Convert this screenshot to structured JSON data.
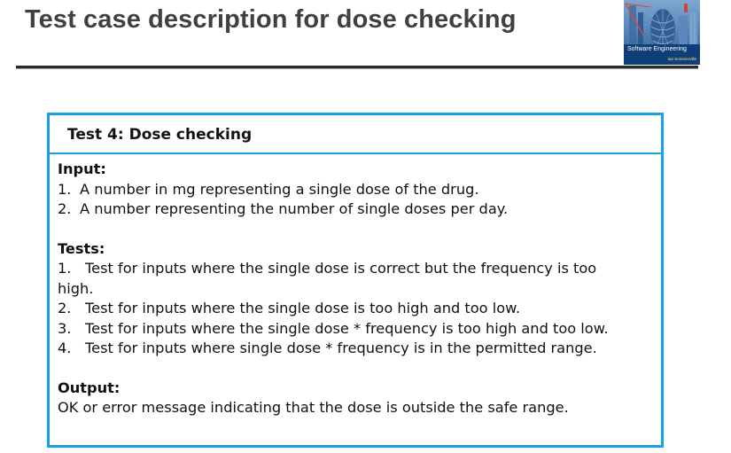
{
  "slide": {
    "title": "Test case description for dose checking"
  },
  "book": {
    "title": "Software Engineering",
    "author": "Ian Sommerville"
  },
  "test_case": {
    "header": "Test 4: Dose checking",
    "input": {
      "heading": "Input:",
      "items": [
        {
          "num": "1.",
          "text": "A number in mg representing a single dose of the drug."
        },
        {
          "num": "2.",
          "text": "A number representing the number of single doses per day."
        }
      ]
    },
    "tests": {
      "heading": "Tests:",
      "items": [
        {
          "num": "1.",
          "text": "Test for inputs where the single dose is correct but the frequency is too",
          "cont": "high."
        },
        {
          "num": "2.",
          "text": "Test for inputs where the single dose is too high and too low."
        },
        {
          "num": "3.",
          "text": "Test for inputs where the single dose * frequency is too high and too low."
        },
        {
          "num": "4.",
          "text": "Test for inputs where single dose * frequency is in the permitted range."
        }
      ]
    },
    "output": {
      "heading": "Output:",
      "text": "OK or error message indicating that the dose is outside the safe range."
    }
  }
}
